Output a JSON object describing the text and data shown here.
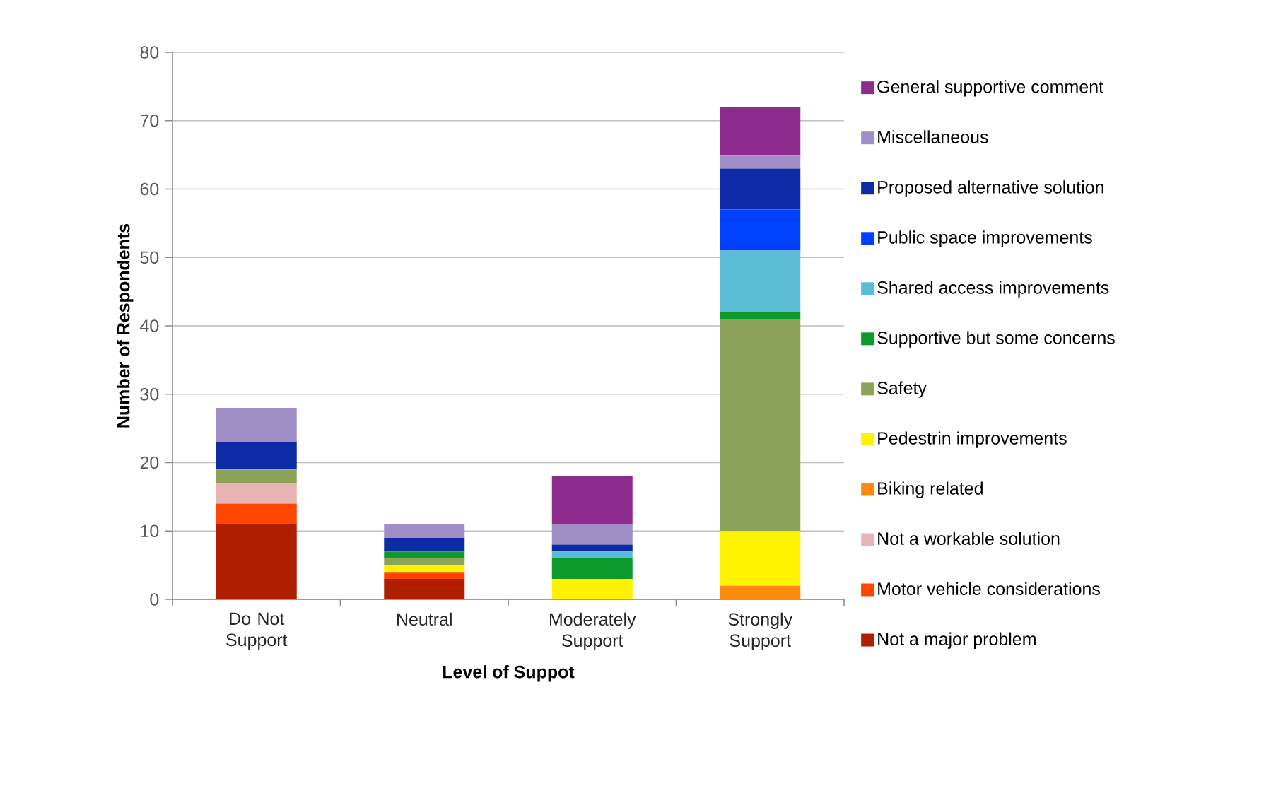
{
  "chart_data": {
    "type": "bar",
    "stacked": true,
    "xlabel": "Level of Suppot",
    "ylabel": "Number of Respondents",
    "categories": [
      "Do Not Support",
      "Neutral",
      "Moderately Support",
      "Strongly Support"
    ],
    "ylim": [
      0,
      80
    ],
    "yticks": [
      0,
      10,
      20,
      30,
      40,
      50,
      60,
      70,
      80
    ],
    "grid": "y",
    "legend": "right",
    "series": [
      {
        "name": "Not a major problem",
        "color": "#b01e00",
        "values": [
          11,
          3,
          0,
          0
        ]
      },
      {
        "name": "Motor vehicle considerations",
        "color": "#ff4500",
        "values": [
          3,
          1,
          0,
          0
        ]
      },
      {
        "name": "Not a workable solution",
        "color": "#e8b4b4",
        "values": [
          3,
          0,
          0,
          0
        ]
      },
      {
        "name": "Biking related",
        "color": "#ff8a10",
        "values": [
          0,
          0,
          0,
          2
        ]
      },
      {
        "name": "Pedestrin improvements",
        "color": "#fff200",
        "values": [
          0,
          1,
          3,
          8
        ]
      },
      {
        "name": "Safety",
        "color": "#8ea35a",
        "values": [
          2,
          1,
          0,
          31
        ]
      },
      {
        "name": "Supportive but some concerns",
        "color": "#0c9a2c",
        "values": [
          0,
          1,
          3,
          1
        ]
      },
      {
        "name": "Shared access improvements",
        "color": "#5bbdd5",
        "values": [
          0,
          0,
          1,
          9
        ]
      },
      {
        "name": "Public space improvements",
        "color": "#0040ff",
        "values": [
          0,
          0,
          0,
          6
        ]
      },
      {
        "name": "Proposed alternative solution",
        "color": "#0d2ba5",
        "values": [
          4,
          2,
          1,
          6
        ]
      },
      {
        "name": "Miscellaneous",
        "color": "#9f8fc6",
        "values": [
          5,
          2,
          3,
          2
        ]
      },
      {
        "name": "General supportive comment",
        "color": "#8e2c8e",
        "values": [
          0,
          0,
          7,
          7
        ]
      }
    ]
  }
}
